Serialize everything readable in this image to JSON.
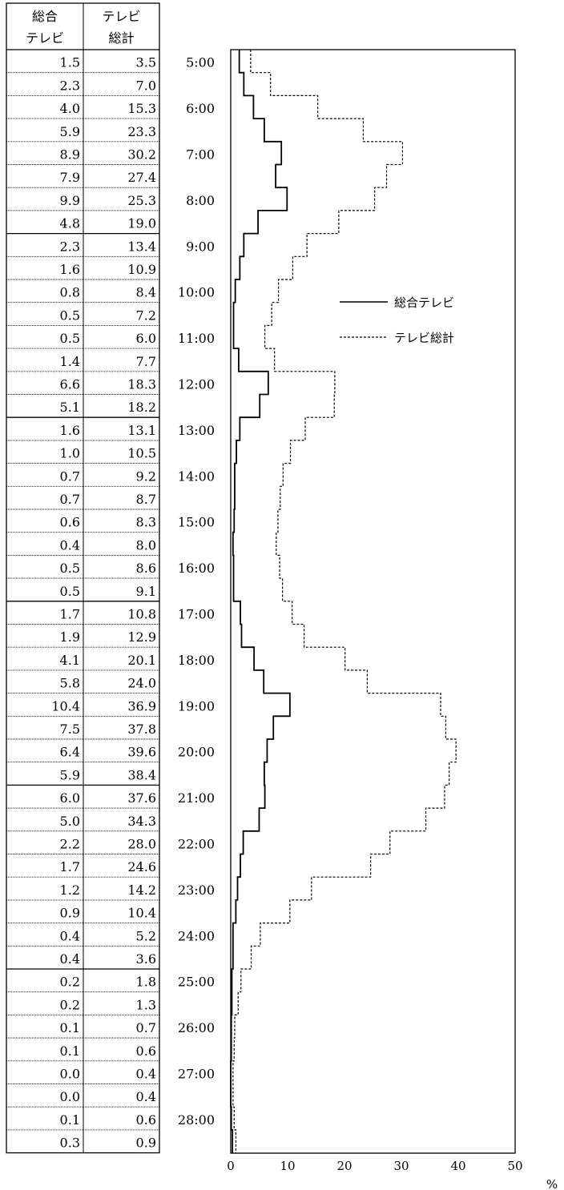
{
  "table": {
    "headers": [
      {
        "line1": "総合",
        "line2": "テレビ"
      },
      {
        "line1": "テレビ",
        "line2": "総計"
      }
    ]
  },
  "legend": {
    "series1_label": "総合テレビ",
    "series2_label": "テレビ総計"
  },
  "axis": {
    "unit": "%",
    "x_ticks": [
      "0",
      "10",
      "20",
      "30",
      "40",
      "50"
    ]
  },
  "colors": {
    "line": "#000000",
    "border": "#000000",
    "background": "#ffffff"
  },
  "chart_data": {
    "type": "line",
    "title": "",
    "xlabel": "%",
    "ylabel": "",
    "xlim": [
      0,
      50
    ],
    "orientation": "vertical-step",
    "time_labels": [
      "5:00",
      "6:00",
      "7:00",
      "8:00",
      "9:00",
      "10:00",
      "11:00",
      "12:00",
      "13:00",
      "14:00",
      "15:00",
      "16:00",
      "17:00",
      "18:00",
      "19:00",
      "20:00",
      "21:00",
      "22:00",
      "23:00",
      "24:00",
      "25:00",
      "26:00",
      "27:00",
      "28:00"
    ],
    "series": [
      {
        "name": "総合テレビ",
        "style": "solid",
        "values": [
          "1.5",
          "2.3",
          "4.0",
          "5.9",
          "8.9",
          "7.9",
          "9.9",
          "4.8",
          "2.3",
          "1.6",
          "0.8",
          "0.5",
          "0.5",
          "1.4",
          "6.6",
          "5.1",
          "1.6",
          "1.0",
          "0.7",
          "0.7",
          "0.6",
          "0.4",
          "0.5",
          "0.5",
          "1.7",
          "1.9",
          "4.1",
          "5.8",
          "10.4",
          "7.5",
          "6.4",
          "5.9",
          "6.0",
          "5.0",
          "2.2",
          "1.7",
          "1.2",
          "0.9",
          "0.4",
          "0.4",
          "0.2",
          "0.2",
          "0.1",
          "0.1",
          "0.0",
          "0.0",
          "0.1",
          "0.3"
        ]
      },
      {
        "name": "テレビ総計",
        "style": "dashed",
        "values": [
          "3.5",
          "7.0",
          "15.3",
          "23.3",
          "30.2",
          "27.4",
          "25.3",
          "19.0",
          "13.4",
          "10.9",
          "8.4",
          "7.2",
          "6.0",
          "7.7",
          "18.3",
          "18.2",
          "13.1",
          "10.5",
          "9.2",
          "8.7",
          "8.3",
          "8.0",
          "8.6",
          "9.1",
          "10.8",
          "12.9",
          "20.1",
          "24.0",
          "36.9",
          "37.8",
          "39.6",
          "38.4",
          "37.6",
          "34.3",
          "28.0",
          "24.6",
          "14.2",
          "10.4",
          "5.2",
          "3.6",
          "1.8",
          "1.3",
          "0.7",
          "0.6",
          "0.4",
          "0.4",
          "0.6",
          "0.9"
        ]
      }
    ]
  }
}
